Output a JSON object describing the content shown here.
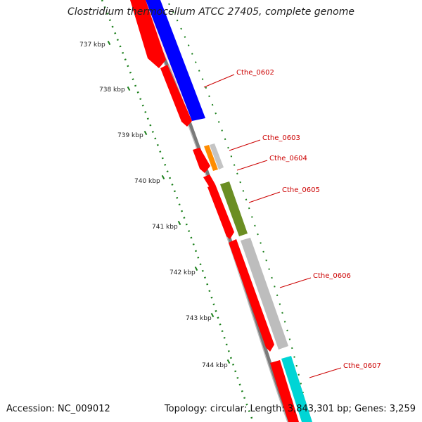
{
  "title": "Clostridium thermocellum ATCC 27405, complete genome",
  "footer": {
    "accession": "Accession: NC_009012",
    "stats": "Topology: circular; Length: 3,843,301 bp; Genes: 3,259"
  },
  "colors": {
    "gene_forward": "#ff0000",
    "backbone": "#777777",
    "tick": "#1a7f1a",
    "label": "#cc0000",
    "blue": "#0000ff",
    "orange": "#ff8c00",
    "gray": "#bdbdbd",
    "olive": "#6b8e23",
    "cyan": "#00d5d5"
  },
  "ticks": [
    {
      "label": "737 kbp"
    },
    {
      "label": "738 kbp"
    },
    {
      "label": "739 kbp"
    },
    {
      "label": "740 kbp"
    },
    {
      "label": "741 kbp"
    },
    {
      "label": "742 kbp"
    },
    {
      "label": "743 kbp"
    },
    {
      "label": "744 kbp"
    }
  ],
  "genes": [
    {
      "label": "Cthe_0602",
      "color": "blue"
    },
    {
      "label": "Cthe_0603",
      "color": "orange"
    },
    {
      "label": "Cthe_0604",
      "color": "gray"
    },
    {
      "label": "Cthe_0605",
      "color": "olive"
    },
    {
      "label": "Cthe_0606",
      "color": "gray"
    },
    {
      "label": "Cthe_0607",
      "color": "cyan"
    }
  ]
}
